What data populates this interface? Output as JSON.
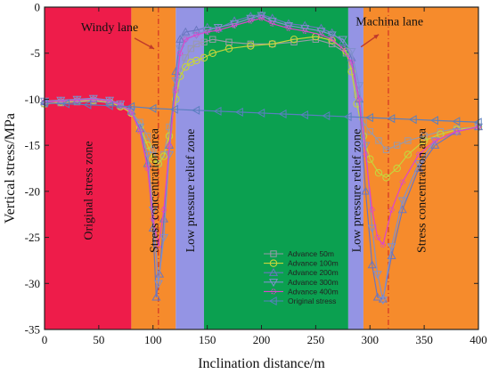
{
  "chart_data": {
    "type": "line",
    "xlabel": "Inclination distance/m",
    "ylabel": "Vertical stress/MPa",
    "xlim": [
      0,
      400
    ],
    "ylim": [
      -35,
      0
    ],
    "xticks": [
      0,
      50,
      100,
      150,
      200,
      250,
      300,
      350,
      400
    ],
    "yticks": [
      0,
      -5,
      -10,
      -15,
      -20,
      -25,
      -30,
      -35
    ],
    "zones": [
      {
        "label": "Original stress zone",
        "x0": 0,
        "x1": 80,
        "color": "#ee1c4a"
      },
      {
        "label": "Stress concentration area",
        "x0": 80,
        "x1": 121,
        "color": "#f68b2c"
      },
      {
        "label": "Low pressure relief zone",
        "x0": 121,
        "x1": 147,
        "color": "#9494e4"
      },
      {
        "label": "",
        "x0": 147,
        "x1": 280,
        "color": "#0ba050"
      },
      {
        "label": "Low pressure relief zone",
        "x0": 280,
        "x1": 294,
        "color": "#9494e4"
      },
      {
        "label": "Stress concentration area",
        "x0": 294,
        "x1": 400,
        "color": "#f68b2c"
      }
    ],
    "dashed_lines_x": [
      105,
      317
    ],
    "annotations": [
      {
        "text": "Windy lane",
        "x": 60,
        "y": -2.6
      },
      {
        "text": "Machina lane",
        "x": 318,
        "y": -2.0
      }
    ],
    "legend_position": "lower-center",
    "series": [
      {
        "name": "Advance 50m",
        "color": "#9999aa",
        "marker": "square",
        "x": [
          0,
          15,
          30,
          45,
          60,
          70,
          80,
          88,
          95,
          100,
          105,
          110,
          115,
          121,
          125,
          130,
          135,
          140,
          147,
          155,
          170,
          190,
          210,
          230,
          250,
          265,
          278,
          283,
          288,
          294,
          300,
          308,
          315,
          325,
          335,
          350,
          365,
          380,
          400
        ],
        "y": [
          -10.5,
          -10.4,
          -10.3,
          -10.2,
          -10.4,
          -10.7,
          -11.4,
          -12.5,
          -14,
          -15.5,
          -17,
          -16,
          -13,
          -9,
          -7,
          -5.5,
          -4.5,
          -4,
          -3.8,
          -3.5,
          -3.8,
          -4,
          -4,
          -3.8,
          -3.5,
          -4,
          -5,
          -6.5,
          -9.5,
          -12.5,
          -13.5,
          -14.5,
          -15.5,
          -15,
          -14.5,
          -14,
          -13.5,
          -13.2,
          -13
        ]
      },
      {
        "name": "Advance 100m",
        "color": "#c6d43c",
        "marker": "circle",
        "x": [
          0,
          15,
          30,
          45,
          60,
          70,
          80,
          88,
          95,
          100,
          105,
          110,
          115,
          121,
          125,
          130,
          135,
          140,
          147,
          155,
          170,
          190,
          210,
          230,
          250,
          265,
          278,
          283,
          288,
          294,
          300,
          308,
          315,
          325,
          335,
          350,
          365,
          380,
          400
        ],
        "y": [
          -10.5,
          -10.3,
          -10.2,
          -10.1,
          -10.3,
          -10.8,
          -11.5,
          -13,
          -15,
          -16.5,
          -17,
          -16.2,
          -14,
          -10,
          -7.5,
          -6.5,
          -6,
          -5.8,
          -5.5,
          -5,
          -4.5,
          -4.2,
          -4,
          -3.5,
          -3.2,
          -3.6,
          -4.8,
          -7,
          -10.5,
          -14,
          -16.5,
          -18,
          -18.5,
          -17.5,
          -16,
          -14.5,
          -13.8,
          -13.3,
          -13
        ]
      },
      {
        "name": "Advance 200m",
        "color": "#6a76c0",
        "marker": "triangle-up",
        "x": [
          0,
          15,
          30,
          45,
          60,
          70,
          80,
          88,
          95,
          100,
          103,
          106,
          110,
          115,
          121,
          125,
          130,
          140,
          150,
          160,
          175,
          190,
          200,
          210,
          225,
          240,
          255,
          265,
          275,
          283,
          290,
          296,
          302,
          307,
          312,
          320,
          330,
          345,
          360,
          380,
          400
        ],
        "y": [
          -10.3,
          -10.2,
          -10.1,
          -10,
          -10.2,
          -10.6,
          -11.3,
          -13.2,
          -17,
          -24,
          -31.5,
          -29,
          -23,
          -15,
          -7,
          -3.5,
          -2.7,
          -2.5,
          -2.2,
          -2.3,
          -1.5,
          -1,
          -0.8,
          -1.2,
          -1.8,
          -2,
          -2.3,
          -2.8,
          -3.8,
          -5.5,
          -10,
          -20,
          -28,
          -31.5,
          -31.7,
          -27,
          -22,
          -17.5,
          -15,
          -13.5,
          -13
        ]
      },
      {
        "name": "Advance 300m",
        "color": "#8090cc",
        "marker": "triangle-down",
        "x": [
          0,
          15,
          30,
          45,
          60,
          70,
          80,
          88,
          95,
          100,
          105,
          110,
          115,
          121,
          125,
          130,
          140,
          150,
          160,
          175,
          190,
          200,
          210,
          225,
          240,
          255,
          265,
          275,
          283,
          290,
          296,
          302,
          307,
          312,
          320,
          330,
          345,
          360,
          380,
          400
        ],
        "y": [
          -10.2,
          -10.1,
          -10,
          -9.9,
          -10.1,
          -10.5,
          -11.3,
          -13,
          -16,
          -22,
          -30,
          -25,
          -16,
          -8,
          -4.5,
          -3.5,
          -3,
          -2.5,
          -2.2,
          -1.8,
          -1.2,
          -0.9,
          -1.5,
          -2,
          -2.3,
          -2.6,
          -3,
          -3.5,
          -4.8,
          -8.5,
          -15,
          -24,
          -29,
          -31.8,
          -26,
          -21,
          -17,
          -14.5,
          -13.5,
          -13
        ]
      },
      {
        "name": "Advance 400m",
        "color": "#dd44cc",
        "marker": "dot",
        "x": [
          0,
          15,
          30,
          45,
          60,
          70,
          80,
          88,
          95,
          100,
          105,
          110,
          115,
          121,
          125,
          130,
          140,
          150,
          160,
          175,
          190,
          200,
          210,
          225,
          240,
          255,
          265,
          275,
          283,
          290,
          296,
          302,
          307,
          312,
          320,
          330,
          345,
          360,
          380,
          400
        ],
        "y": [
          -10.3,
          -10.2,
          -10.1,
          -10,
          -10.2,
          -10.6,
          -11.4,
          -13.5,
          -17.5,
          -23,
          -26,
          -22,
          -15,
          -9,
          -5,
          -3.5,
          -3,
          -2.7,
          -2.5,
          -2,
          -1.5,
          -1.2,
          -1.8,
          -2.3,
          -2.6,
          -3,
          -3.5,
          -4.5,
          -6,
          -10,
          -16,
          -22,
          -25,
          -25.8,
          -22,
          -19,
          -16,
          -14.5,
          -13.5,
          -13
        ]
      },
      {
        "name": "Original stress",
        "color": "#5a7fbf",
        "marker": "triangle-left",
        "x": [
          0,
          20,
          40,
          60,
          80,
          100,
          120,
          140,
          160,
          180,
          200,
          220,
          240,
          260,
          280,
          300,
          320,
          340,
          360,
          380,
          400
        ],
        "y": [
          -10.4,
          -10.5,
          -10.6,
          -10.7,
          -10.8,
          -11,
          -11.1,
          -11.2,
          -11.3,
          -11.4,
          -11.5,
          -11.6,
          -11.7,
          -11.8,
          -11.9,
          -12,
          -12.1,
          -12.2,
          -12.3,
          -12.4,
          -12.5
        ]
      }
    ]
  }
}
